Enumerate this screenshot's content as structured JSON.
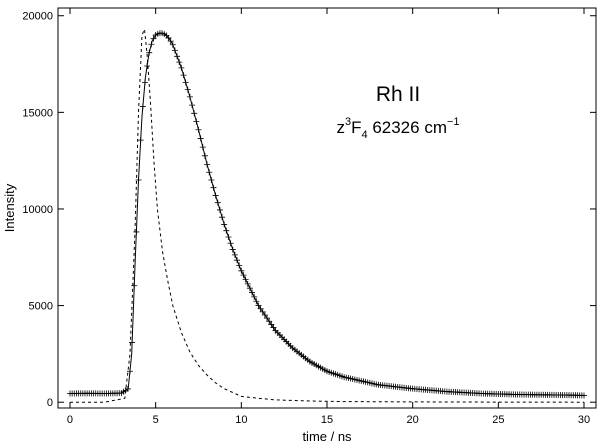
{
  "chart_data": {
    "type": "line",
    "title": "",
    "xlabel": "time / ns",
    "ylabel": "Intensity",
    "xlim": [
      -0.7,
      30.7
    ],
    "ylim": [
      -300,
      20400
    ],
    "xticks": [
      0,
      5,
      10,
      15,
      20,
      25,
      30
    ],
    "yticks": [
      0,
      5000,
      10000,
      15000,
      20000
    ],
    "grid": false,
    "legend": "none",
    "annotations": {
      "line1": "Rh II",
      "line2": {
        "pre": "z",
        "sup1": "3",
        "mid": "F",
        "sub": "4",
        "rest": " 62326 cm",
        "sup2": "−1"
      }
    },
    "series": [
      {
        "style": "solid-with-plus-markers",
        "x": [
          0,
          1,
          2,
          3,
          3.4,
          3.6,
          3.8,
          4.0,
          4.2,
          4.4,
          4.6,
          4.8,
          5.0,
          5.2,
          5.4,
          5.6,
          5.8,
          6.0,
          6.5,
          7.0,
          7.5,
          8.0,
          8.5,
          9.0,
          9.5,
          10.0,
          11.0,
          12.0,
          13.0,
          14.0,
          15.0,
          16.0,
          17.0,
          18.0,
          20.0,
          22.0,
          24.0,
          26.0,
          28.0,
          30.0
        ],
        "y": [
          450,
          460,
          450,
          470,
          700,
          2500,
          7200,
          11500,
          14800,
          16800,
          18000,
          18700,
          19000,
          19100,
          19100,
          19000,
          18800,
          18500,
          17300,
          15800,
          14100,
          12300,
          10700,
          9200,
          7900,
          6800,
          5000,
          3700,
          2800,
          2100,
          1600,
          1300,
          1100,
          900,
          700,
          550,
          450,
          400,
          380,
          350
        ]
      },
      {
        "style": "dashed",
        "x": [
          0,
          2,
          3.2,
          3.5,
          3.8,
          4.0,
          4.2,
          4.35,
          4.5,
          4.7,
          4.9,
          5.1,
          5.4,
          5.7,
          6.0,
          6.5,
          7.0,
          7.5,
          8.0,
          8.5,
          9.0,
          9.5,
          10.0,
          11.0,
          12.0,
          14.0,
          16.0,
          20.0,
          25.0,
          30.0
        ],
        "y": [
          0,
          0,
          200,
          2500,
          9000,
          15000,
          19000,
          19300,
          18000,
          15500,
          12500,
          10000,
          7800,
          6300,
          5000,
          3600,
          2600,
          1900,
          1400,
          1000,
          700,
          500,
          300,
          200,
          120,
          60,
          30,
          15,
          5,
          0
        ]
      }
    ]
  }
}
